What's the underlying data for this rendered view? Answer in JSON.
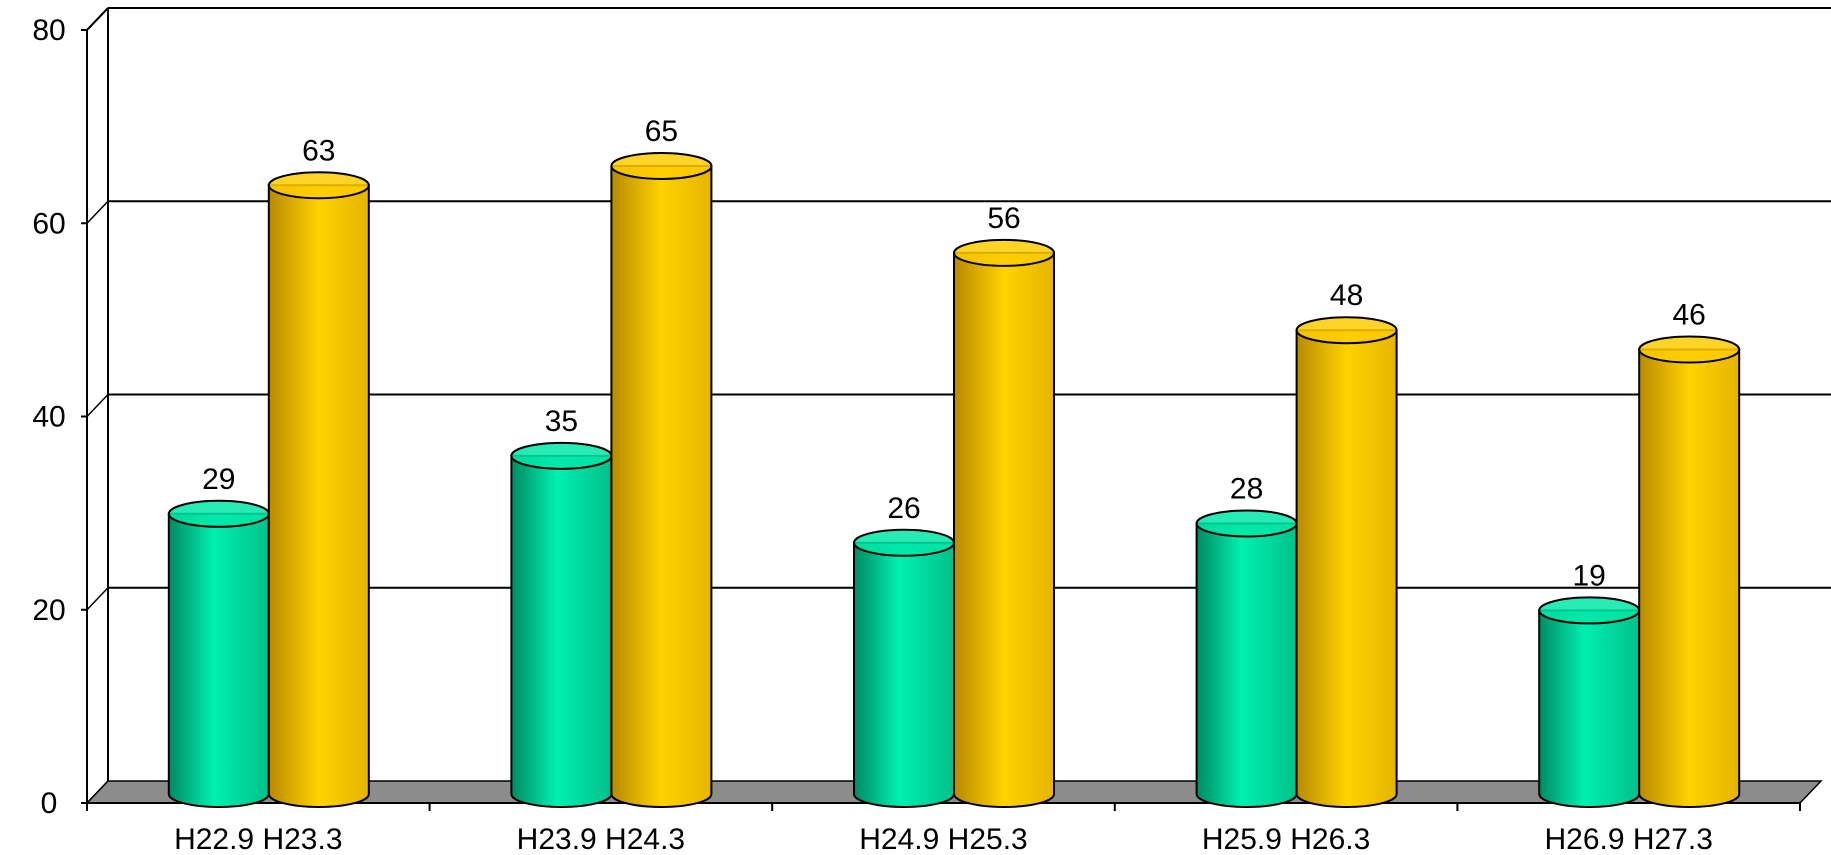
{
  "chart_data": {
    "type": "bar",
    "style": "3d-cylinder",
    "categories": [
      "H22.9 H23.3",
      "H23.9 H24.3",
      "H24.9 H25.3",
      "H25.9 H26.3",
      "H26.9 H27.3"
    ],
    "series": [
      {
        "values": [
          29,
          35,
          26,
          28,
          19
        ],
        "color": "#00E8A8"
      },
      {
        "values": [
          63,
          65,
          56,
          48,
          46
        ],
        "color": "#FFCC00"
      }
    ],
    "ylim": [
      0,
      80
    ],
    "yticks": [
      0,
      20,
      40,
      60,
      80
    ],
    "gridlines": true,
    "data_labels": true,
    "floor_color": "#8C8C8C",
    "legend": "none"
  }
}
